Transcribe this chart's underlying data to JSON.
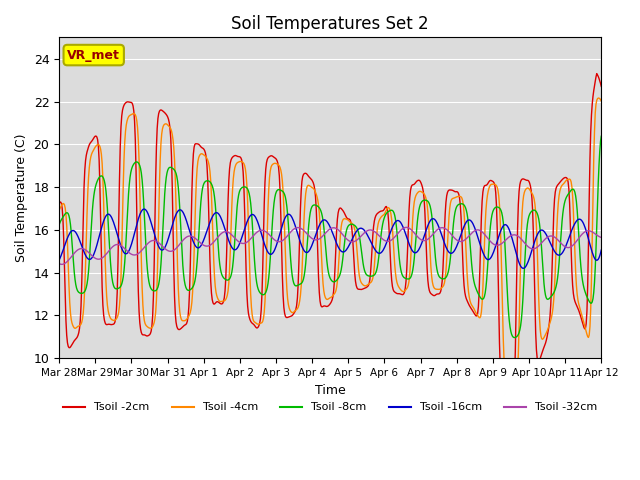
{
  "title": "Soil Temperatures Set 2",
  "xlabel": "Time",
  "ylabel": "Soil Temperature (C)",
  "ylim": [
    10,
    25
  ],
  "annotation": "VR_met",
  "annotation_bg": "#FFFF00",
  "annotation_border": "#AAAA00",
  "annotation_text_color": "#990000",
  "bg_color": "#DCDCDC",
  "grid_color": "white",
  "line_colors": [
    "#DD0000",
    "#FF8800",
    "#00BB00",
    "#0000CC",
    "#AA44AA"
  ],
  "line_labels": [
    "Tsoil -2cm",
    "Tsoil -4cm",
    "Tsoil -8cm",
    "Tsoil -16cm",
    "Tsoil -32cm"
  ],
  "xtick_labels": [
    "Mar 28",
    "Mar 29",
    "Mar 30",
    "Mar 31",
    "Apr 1",
    "Apr 2",
    "Apr 3",
    "Apr 4",
    "Apr 5",
    "Apr 6",
    "Apr 7",
    "Apr 8",
    "Apr 9",
    "Apr 10",
    "Apr 11",
    "Apr 12"
  ],
  "ytick_values": [
    10,
    12,
    14,
    16,
    18,
    20,
    22,
    24
  ],
  "figsize": [
    6.4,
    4.8
  ],
  "dpi": 100
}
